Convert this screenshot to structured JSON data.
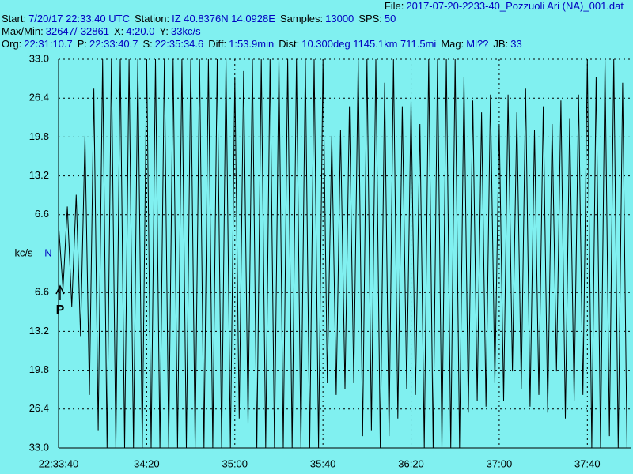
{
  "header": {
    "file": {
      "label": "File:",
      "value": "2017-07-20-2233-40_Pozzuoli Ari (NA)_001.dat"
    },
    "lines": [
      [
        {
          "label": "Start:",
          "value": "7/20/17 22:33:40 UTC"
        },
        {
          "label": "Station:",
          "value": "IZ 40.8376N 14.0928E"
        },
        {
          "label": "Samples:",
          "value": "13000"
        },
        {
          "label": "SPS:",
          "value": "50"
        }
      ],
      [
        {
          "label": "Max/Min:",
          "value": "32647/-32861"
        },
        {
          "label": "X:",
          "value": "4:20.0"
        },
        {
          "label": "Y:",
          "value": "33kc/s"
        }
      ],
      [
        {
          "label": "Org:",
          "value": "22:31:10.7"
        },
        {
          "label": "P:",
          "value": "22:33:40.7"
        },
        {
          "label": "S:",
          "value": "22:35:34.6"
        },
        {
          "label": "Diff:",
          "value": "1:53.9min"
        },
        {
          "label": "Dist:",
          "value": "10.300deg 1145.1km 711.5mi"
        },
        {
          "label": "Mag:",
          "value": "Ml??"
        },
        {
          "label": "JB:",
          "value": "33"
        }
      ]
    ]
  },
  "chart_data": {
    "type": "line",
    "y_label": "kc/s",
    "zero_label": "N",
    "p_arrival": {
      "x": 0.7,
      "label": "P"
    },
    "xlim": [
      0,
      260
    ],
    "ylim": [
      -33,
      33
    ],
    "xticks": [
      {
        "value": 0,
        "label": "22:33:40"
      },
      {
        "value": 40,
        "label": "34:20"
      },
      {
        "value": 80,
        "label": "35:00"
      },
      {
        "value": 120,
        "label": "35:40"
      },
      {
        "value": 160,
        "label": "36:20"
      },
      {
        "value": 200,
        "label": "37:00"
      },
      {
        "value": 240,
        "label": "37:40"
      }
    ],
    "yticks": [
      {
        "value": 33,
        "label": "33.0"
      },
      26.4,
      19.8,
      13.2,
      6.6,
      {
        "value": -6.6,
        "label": "6.6"
      },
      {
        "value": -13.2,
        "label": "13.2"
      },
      {
        "value": -19.8,
        "label": "19.8"
      },
      {
        "value": -26.4,
        "label": "26.4"
      },
      {
        "value": -33,
        "label": "33.0"
      }
    ],
    "grid": true,
    "x": [
      0,
      2,
      4,
      6,
      8,
      10,
      12,
      14,
      16,
      18,
      20,
      22,
      24,
      26,
      28,
      30,
      32,
      34,
      36,
      38,
      40,
      42,
      44,
      46,
      48,
      50,
      52,
      54,
      56,
      58,
      60,
      62,
      64,
      66,
      68,
      70,
      72,
      74,
      76,
      78,
      80,
      82,
      84,
      86,
      88,
      90,
      92,
      94,
      96,
      98,
      100,
      102,
      104,
      106,
      108,
      110,
      112,
      114,
      116,
      118,
      120,
      122,
      124,
      126,
      128,
      130,
      132,
      134,
      136,
      138,
      140,
      142,
      144,
      146,
      148,
      150,
      152,
      154,
      156,
      158,
      160,
      162,
      164,
      166,
      168,
      170,
      172,
      174,
      176,
      178,
      180,
      182,
      184,
      186,
      188,
      190,
      192,
      194,
      196,
      198,
      200,
      202,
      204,
      206,
      208,
      210,
      212,
      214,
      216,
      218,
      220,
      222,
      224,
      226,
      228,
      230,
      232,
      234,
      236,
      238,
      240,
      242,
      244,
      246,
      248,
      250,
      252,
      254,
      256,
      258
    ],
    "series": [
      {
        "color": "#000000",
        "values": [
          5,
          -6,
          8,
          -9,
          10,
          -14,
          20,
          -24,
          28,
          -30,
          33,
          -33,
          33,
          -33,
          33,
          -33,
          33,
          -33,
          33,
          -33,
          33,
          -33,
          33,
          -33,
          33,
          -33,
          33,
          -33,
          33,
          -33,
          33,
          -33,
          33,
          -33,
          33,
          -33,
          33,
          -33,
          33,
          -33,
          30,
          -28,
          31,
          -29,
          33,
          -33,
          33,
          -33,
          33,
          -33,
          33,
          -33,
          33,
          -33,
          33,
          -33,
          33,
          -33,
          33,
          -33,
          33,
          -22,
          20,
          -24,
          21,
          -23,
          25,
          -22,
          33,
          -31,
          33,
          -30,
          33,
          -33,
          29,
          -31,
          33,
          -28,
          25,
          -23,
          26,
          -24,
          22,
          -33,
          33,
          -33,
          33,
          -33,
          33,
          -33,
          33,
          -33,
          30,
          -27,
          26,
          -25,
          24,
          -26,
          27,
          -22,
          22,
          -25,
          27,
          -20,
          24,
          -23,
          28,
          -26,
          21,
          -24,
          25,
          -27,
          22,
          -20,
          26,
          -28,
          23,
          -25,
          27,
          -24,
          33,
          -33,
          30,
          -33,
          33,
          -31,
          33,
          -33,
          29,
          -33
        ]
      }
    ]
  }
}
